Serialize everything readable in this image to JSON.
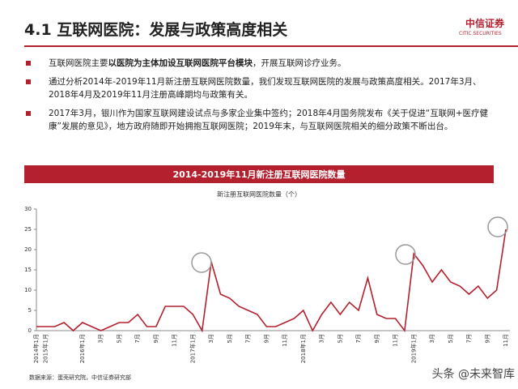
{
  "header": {
    "title": "4.1 互联网医院：发展与政策高度相关",
    "logo": "中信证券",
    "logo_en": "CITIC SECURITIES"
  },
  "bullets": [
    [
      "互联网医院主要",
      "以医院为主体加设互联网医院平台模块",
      "，开展互联网诊疗业务。"
    ],
    [
      "通过分析2014年-2019年11月新注册互联网医院数量，我们发现互联网医院的发展与政策高度相关。2017年3月、2018年4月及2019年11月注册高峰期均与政策有关。"
    ],
    [
      "2017年3月，银川作为国家互联网建设试点与多家企业集中签约；2018年4月国务院发布《关于促进“互联网+医疗健康”发展的意见》，地方政府随即开始拥抱互联网医院；2019年末，与互联网医院相关的细分政策不断出台。"
    ]
  ],
  "chart_data": {
    "type": "line",
    "title": "2014-2019年11月新注册互联网医院数量",
    "series": [
      {
        "name": "新注册互联网医院数量（个）",
        "color": "#b5202e",
        "values": [
          1,
          1,
          1,
          2,
          0,
          2,
          1,
          0,
          1,
          2,
          2,
          4,
          1,
          1,
          6,
          6,
          6,
          4,
          0,
          17,
          9,
          8,
          6,
          5,
          4,
          1,
          1,
          2,
          3,
          5,
          0,
          4,
          7,
          4,
          7,
          5,
          13,
          4,
          3,
          3,
          0,
          19,
          16,
          12,
          15,
          12,
          11,
          9,
          11,
          8,
          10,
          25
        ]
      }
    ],
    "categories": [
      "2014年1月",
      "2015年1月",
      null,
      null,
      null,
      "2016年1月",
      null,
      "3月",
      null,
      "5月",
      null,
      "7月",
      null,
      "9月",
      null,
      "11月",
      null,
      "2017年1月",
      null,
      "3月",
      null,
      "5月",
      null,
      "7月",
      null,
      "9月",
      null,
      "11月",
      null,
      "2018年1月",
      null,
      "3月",
      null,
      "5月",
      null,
      "7月",
      null,
      "9月",
      null,
      "11月",
      null,
      "2019年1月",
      null,
      "3月",
      null,
      "5月",
      null,
      "7月",
      null,
      "9月",
      null,
      "11月"
    ],
    "ylim": [
      0,
      30
    ],
    "yticks": [
      0,
      5,
      10,
      15,
      20,
      25,
      30
    ]
  },
  "source": "数据来源：蛋壳研究院，中信证券研究部",
  "watermark": "头条 @未来智库"
}
